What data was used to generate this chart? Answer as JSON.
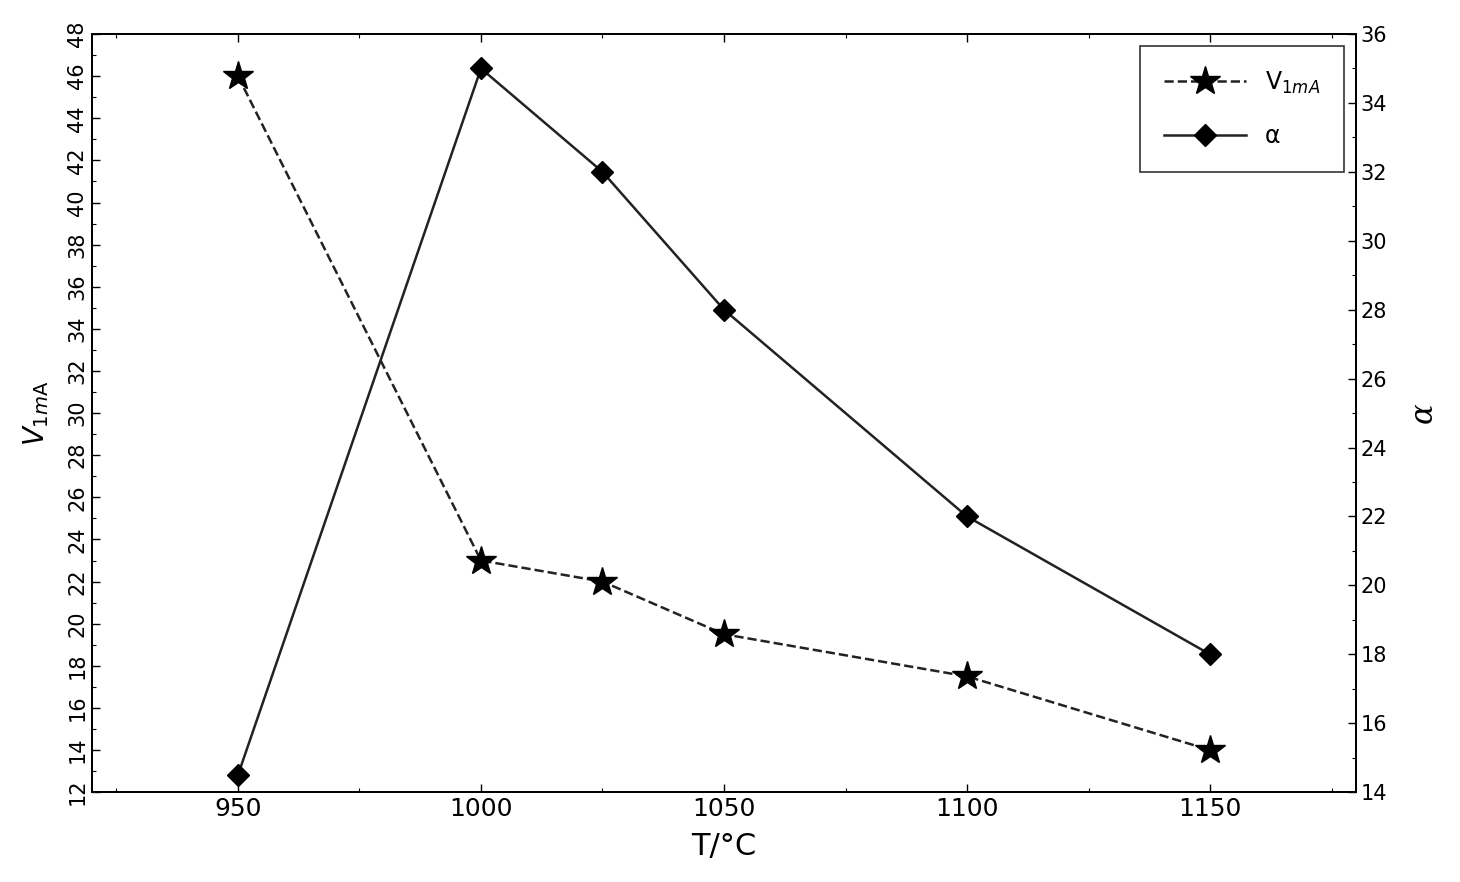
{
  "title": "",
  "xlabel": "T/°C",
  "ylabel_left": "V",
  "ylabel_left_sub": "1mA",
  "ylabel_right": "α",
  "x": [
    950,
    1000,
    1025,
    1050,
    1100,
    1150
  ],
  "V1mA": [
    46,
    23,
    22,
    19.5,
    17.5,
    14
  ],
  "alpha": [
    14.5,
    35,
    32,
    28,
    22,
    18
  ],
  "xlim": [
    920,
    1180
  ],
  "ylim_left": [
    12,
    48
  ],
  "ylim_right": [
    14,
    36
  ],
  "yticks_left": [
    12,
    14,
    16,
    18,
    20,
    22,
    24,
    26,
    28,
    30,
    32,
    34,
    36,
    38,
    40,
    42,
    44,
    46,
    48
  ],
  "yticks_right": [
    14,
    16,
    18,
    20,
    22,
    24,
    26,
    28,
    30,
    32,
    34,
    36
  ],
  "xticks": [
    950,
    1000,
    1050,
    1100,
    1150
  ],
  "legend_V1mA": "V$_{1m A}$",
  "legend_alpha": "α",
  "line_color": "#222222",
  "marker_star": "*",
  "marker_diamond": "D",
  "marker_size_star": 22,
  "marker_size_diamond": 11,
  "linewidth": 1.8,
  "dashed_style_V": "--",
  "dashed_style_alpha": "-",
  "tick_label_fontsize": 15,
  "xlabel_fontsize": 22,
  "ylabel_fontsize": 20,
  "legend_fontsize": 17
}
